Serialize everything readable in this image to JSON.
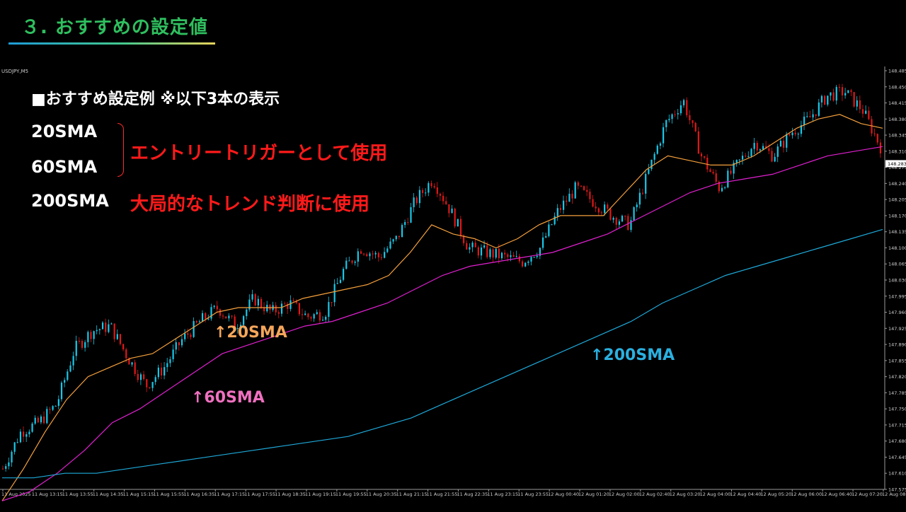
{
  "page": {
    "title": "３. おすすめの設定値",
    "symbol": "USDJPY,M5"
  },
  "overlay": {
    "heading": "■おすすめ設定例 ※以下3本の表示",
    "sma20": "20SMA",
    "sma60": "60SMA",
    "sma200": "200SMA",
    "entry_text": "エントリートリガーとして使用",
    "trend_text": "大局的なトレンド判断に使用",
    "ann20": "↑20SMA",
    "ann60": "↑60SMA",
    "ann200": "↑200SMA"
  },
  "colors": {
    "sma20": "#f5a03c",
    "sma60": "#e020d0",
    "sma200": "#1ea8d8",
    "bull": "#19c8e8",
    "bear": "#e01818",
    "ann20": "#f5a65a",
    "ann60": "#f070c0",
    "ann200": "#2ab0e0",
    "price_tag": "#ffffff"
  },
  "chart_data": {
    "type": "candlestick",
    "ylim": [
      147.575,
      148.485
    ],
    "y_ticks": [
      "148.485",
      "148.450",
      "148.415",
      "148.380",
      "148.345",
      "148.310",
      "148.275",
      "148.240",
      "148.205",
      "148.170",
      "148.135",
      "148.100",
      "148.065",
      "148.030",
      "147.995",
      "147.960",
      "147.925",
      "147.890",
      "147.855",
      "147.820",
      "147.785",
      "147.750",
      "147.715",
      "147.680",
      "147.645",
      "147.610",
      "147.575"
    ],
    "x_ticks": [
      "11 Aug 2025",
      "11 Aug 13:15",
      "11 Aug 13:55",
      "11 Aug 14:35",
      "11 Aug 15:15",
      "11 Aug 15:55",
      "11 Aug 16:35",
      "11 Aug 17:15",
      "11 Aug 17:55",
      "11 Aug 18:35",
      "11 Aug 19:15",
      "11 Aug 19:55",
      "11 Aug 20:35",
      "11 Aug 21:15",
      "11 Aug 21:55",
      "11 Aug 22:35",
      "11 Aug 23:15",
      "11 Aug 23:55",
      "12 Aug 00:40",
      "12 Aug 01:20",
      "12 Aug 02:00",
      "12 Aug 02:40",
      "12 Aug 03:20",
      "12 Aug 04:00",
      "12 Aug 04:40",
      "12 Aug 05:20",
      "12 Aug 06:00",
      "12 Aug 06:40",
      "12 Aug 07:20",
      "12 Aug 08:00"
    ],
    "current_price": "148.283",
    "close_path": [
      147.62,
      147.7,
      147.72,
      147.76,
      147.88,
      147.92,
      147.93,
      147.86,
      147.8,
      147.84,
      147.9,
      147.94,
      147.97,
      147.93,
      147.99,
      147.96,
      147.98,
      147.95,
      147.96,
      148.05,
      148.1,
      148.08,
      148.12,
      148.2,
      148.25,
      148.18,
      148.1,
      148.09,
      148.08,
      148.07,
      148.1,
      148.18,
      148.23,
      148.2,
      148.17,
      148.15,
      148.26,
      148.37,
      148.42,
      148.3,
      148.23,
      148.28,
      148.33,
      148.3,
      148.35,
      148.38,
      148.43,
      148.44,
      148.4,
      148.32
    ],
    "series": [
      {
        "name": "20SMA",
        "values": [
          147.55,
          147.62,
          147.7,
          147.77,
          147.82,
          147.84,
          147.86,
          147.87,
          147.9,
          147.93,
          147.96,
          147.97,
          147.97,
          147.97,
          147.99,
          148.0,
          148.01,
          148.02,
          148.04,
          148.09,
          148.15,
          148.13,
          148.12,
          148.1,
          148.12,
          148.15,
          148.17,
          148.17,
          148.17,
          148.22,
          148.27,
          148.3,
          148.29,
          148.28,
          148.28,
          148.3,
          148.33,
          148.36,
          148.38,
          148.39,
          148.37,
          148.36
        ]
      },
      {
        "name": "60SMA",
        "values": [
          147.55,
          147.57,
          147.61,
          147.66,
          147.72,
          147.75,
          147.79,
          147.83,
          147.87,
          147.89,
          147.91,
          147.93,
          147.94,
          147.96,
          147.98,
          148.01,
          148.04,
          148.06,
          148.07,
          148.08,
          148.09,
          148.11,
          148.13,
          148.16,
          148.19,
          148.22,
          148.24,
          148.25,
          148.26,
          148.28,
          148.3,
          148.31,
          148.32
        ]
      },
      {
        "name": "200SMA",
        "values": [
          147.6,
          147.6,
          147.61,
          147.61,
          147.62,
          147.63,
          147.64,
          147.65,
          147.66,
          147.67,
          147.68,
          147.69,
          147.71,
          147.73,
          147.76,
          147.79,
          147.82,
          147.85,
          147.88,
          147.91,
          147.94,
          147.98,
          148.01,
          148.04,
          148.06,
          148.08,
          148.1,
          148.12,
          148.14
        ]
      }
    ]
  }
}
